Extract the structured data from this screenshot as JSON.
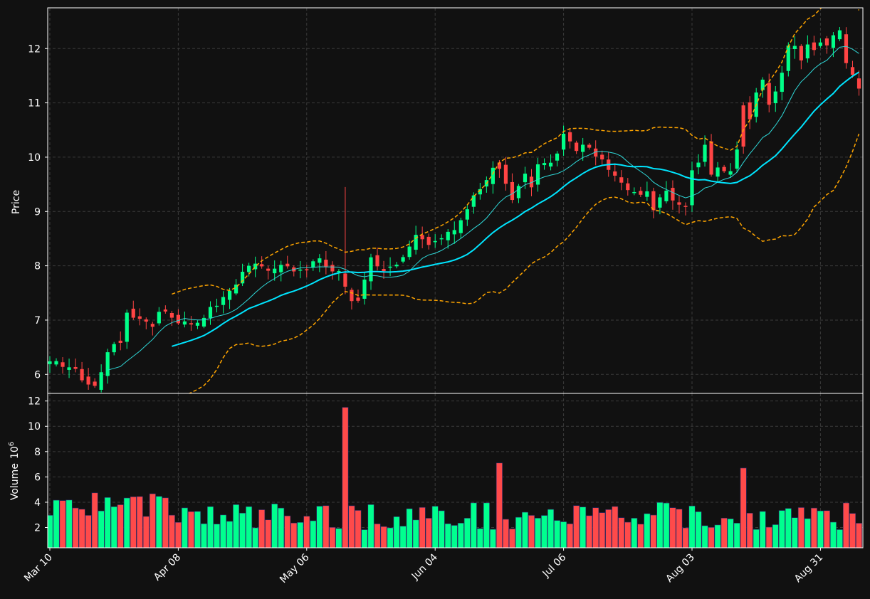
{
  "chart_data": {
    "type": "candlestick",
    "panels": {
      "price": {
        "ylabel": "Price",
        "yticks": [
          6,
          7,
          8,
          9,
          10,
          11,
          12
        ],
        "ylim": [
          5.65,
          12.75
        ]
      },
      "volume": {
        "ylabel": "Volume",
        "ylabel_exponent": "10",
        "ylabel_exponent_power": "6",
        "yticks": [
          2,
          4,
          6,
          8,
          10,
          12
        ],
        "ylim": [
          0.4,
          12.6
        ]
      }
    },
    "xticks": [
      {
        "label": "Mar 10",
        "index": 0
      },
      {
        "label": "Apr 08",
        "index": 20
      },
      {
        "label": "May 06",
        "index": 40
      },
      {
        "label": "Jun 04",
        "index": 60
      },
      {
        "label": "Jul 06",
        "index": 80
      },
      {
        "label": "Aug 03",
        "index": 100
      },
      {
        "label": "Aug 31",
        "index": 120
      }
    ],
    "n_bars": 127,
    "overlays": [
      {
        "name": "ma-short",
        "style": "solid-thin",
        "color": "#2fd8d8"
      },
      {
        "name": "ma-long",
        "style": "solid-thick",
        "color": "#00e5ff"
      },
      {
        "name": "band-upper",
        "style": "dashed",
        "color": "#ffa500"
      },
      {
        "name": "band-lower",
        "style": "dashed",
        "color": "#ffa500"
      }
    ],
    "close_keypoints": [
      [
        0,
        6.3
      ],
      [
        1,
        6.22
      ],
      [
        2,
        6.1
      ],
      [
        4,
        6.05
      ],
      [
        5,
        5.85
      ],
      [
        7,
        5.75
      ],
      [
        8,
        6.0
      ],
      [
        9,
        6.45
      ],
      [
        11,
        6.55
      ],
      [
        12,
        7.1
      ],
      [
        14,
        7.0
      ],
      [
        16,
        6.85
      ],
      [
        17,
        7.2
      ],
      [
        18,
        7.1
      ],
      [
        19,
        7.0
      ],
      [
        20,
        6.95
      ],
      [
        22,
        6.9
      ],
      [
        24,
        7.1
      ],
      [
        26,
        7.3
      ],
      [
        28,
        7.55
      ],
      [
        30,
        7.85
      ],
      [
        32,
        8.05
      ],
      [
        34,
        7.9
      ],
      [
        36,
        8.05
      ],
      [
        38,
        7.85
      ],
      [
        40,
        7.95
      ],
      [
        42,
        8.15
      ],
      [
        43,
        7.95
      ],
      [
        45,
        7.85
      ],
      [
        46,
        7.65
      ],
      [
        47,
        7.35
      ],
      [
        48,
        7.35
      ],
      [
        50,
        8.1
      ],
      [
        52,
        7.95
      ],
      [
        54,
        8.0
      ],
      [
        55,
        8.2
      ],
      [
        57,
        8.55
      ],
      [
        59,
        8.35
      ],
      [
        61,
        8.5
      ],
      [
        62,
        8.6
      ],
      [
        64,
        8.8
      ],
      [
        66,
        9.3
      ],
      [
        68,
        9.6
      ],
      [
        70,
        9.9
      ],
      [
        71,
        9.45
      ],
      [
        72,
        9.2
      ],
      [
        74,
        9.65
      ],
      [
        75,
        9.5
      ],
      [
        76,
        9.9
      ],
      [
        78,
        9.85
      ],
      [
        80,
        10.4
      ],
      [
        82,
        10.15
      ],
      [
        84,
        10.2
      ],
      [
        85,
        10.05
      ],
      [
        86,
        9.95
      ],
      [
        88,
        9.6
      ],
      [
        90,
        9.45
      ],
      [
        91,
        9.3
      ],
      [
        92,
        9.3
      ],
      [
        93,
        9.35
      ],
      [
        94,
        9.0
      ],
      [
        96,
        9.4
      ],
      [
        97,
        9.15
      ],
      [
        99,
        9.1
      ],
      [
        100,
        9.7
      ],
      [
        101,
        9.95
      ],
      [
        102,
        10.2
      ],
      [
        103,
        9.7
      ],
      [
        104,
        9.75
      ],
      [
        106,
        9.75
      ],
      [
        107,
        10.15
      ],
      [
        108,
        10.9
      ],
      [
        109,
        10.7
      ],
      [
        110,
        11.2
      ],
      [
        111,
        11.4
      ],
      [
        112,
        11.0
      ],
      [
        113,
        11.2
      ],
      [
        114,
        11.6
      ],
      [
        115,
        12.0
      ],
      [
        116,
        12.1
      ],
      [
        117,
        11.75
      ],
      [
        118,
        12.1
      ],
      [
        119,
        11.95
      ],
      [
        120,
        12.15
      ],
      [
        121,
        12.05
      ],
      [
        122,
        12.3
      ],
      [
        123,
        12.35
      ],
      [
        124,
        11.75
      ],
      [
        125,
        11.55
      ],
      [
        126,
        11.3
      ]
    ],
    "up_color": "#00ff88",
    "down_color": "#ff4444",
    "up_volume_color": "#00ff8f",
    "down_volume_color": "#ff4a4a",
    "background": "#111111",
    "grid": true,
    "notes_spikes": [
      {
        "index": 46,
        "volume": 11.5
      },
      {
        "index": 70,
        "volume": 7.1
      },
      {
        "index": 108,
        "volume": 6.7
      }
    ]
  }
}
